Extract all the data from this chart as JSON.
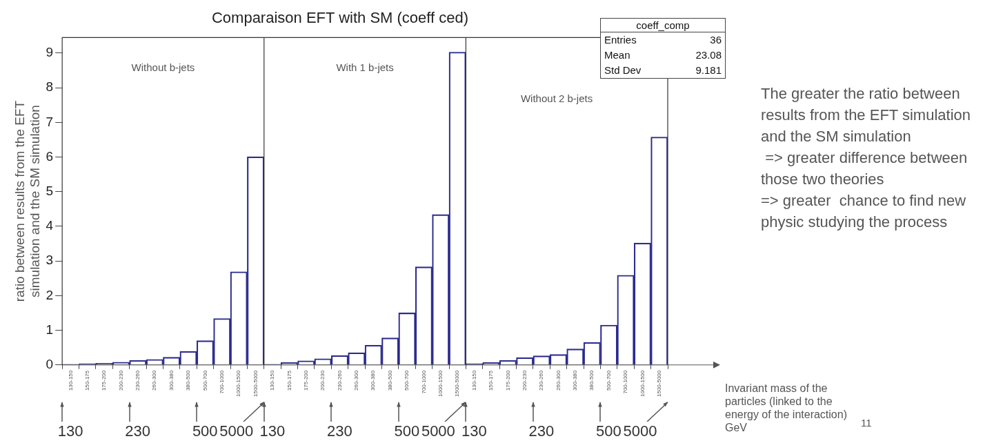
{
  "chart_data": {
    "type": "bar",
    "title": "Comparaison EFT with SM (coeff ced)",
    "ylabel": "ratio between results from the EFT simulation and the SM simulation",
    "categories": [
      "130-150",
      "150-175",
      "175-200",
      "200-230",
      "230-260",
      "260-300",
      "300-380",
      "380-500",
      "500-700",
      "700-1000",
      "1000-1500",
      "1500-5000",
      "130-150",
      "150-175",
      "175-200",
      "200-230",
      "230-260",
      "260-300",
      "300-380",
      "380-500",
      "500-700",
      "700-1000",
      "1000-1500",
      "1500-5000",
      "130-150",
      "150-175",
      "175-200",
      "200-230",
      "230-260",
      "260-300",
      "300-380",
      "380-500",
      "500-700",
      "700-1000",
      "1000-1500",
      "1500-5000"
    ],
    "values": [
      0.02,
      0.04,
      0.05,
      0.08,
      0.13,
      0.16,
      0.22,
      0.39,
      0.7,
      1.34,
      2.69,
      6.01,
      0.02,
      0.07,
      0.12,
      0.18,
      0.27,
      0.35,
      0.57,
      0.78,
      1.5,
      2.83,
      4.34,
      9.03,
      0.04,
      0.07,
      0.13,
      0.21,
      0.26,
      0.3,
      0.46,
      0.65,
      1.15,
      2.59,
      3.52,
      6.58
    ],
    "color": "#2b2b8f",
    "ylim": [
      0,
      9.45
    ],
    "yticks": [
      0,
      1,
      2,
      3,
      4,
      5,
      6,
      7,
      8,
      9
    ],
    "grid": false,
    "legend": false,
    "annotations": [
      "Without b-jets",
      "With 1 b-jets",
      "Without 2 b-jets",
      "coeff_comp",
      "Entries",
      "36",
      "Mean",
      "23.08",
      "Std Dev",
      "9.181",
      "The greater the ratio between results from the EFT simulation and the SM simulation\n => greater difference between those two theories\n=> greater  chance to find new physic studying the process",
      "11",
      "Invariant mass of the particles (linked to the energy of the interaction) GeV",
      "130",
      "230",
      "500",
      "5000",
      "130",
      "230",
      "500",
      "5000",
      "130",
      "230",
      "500",
      "5000"
    ]
  }
}
